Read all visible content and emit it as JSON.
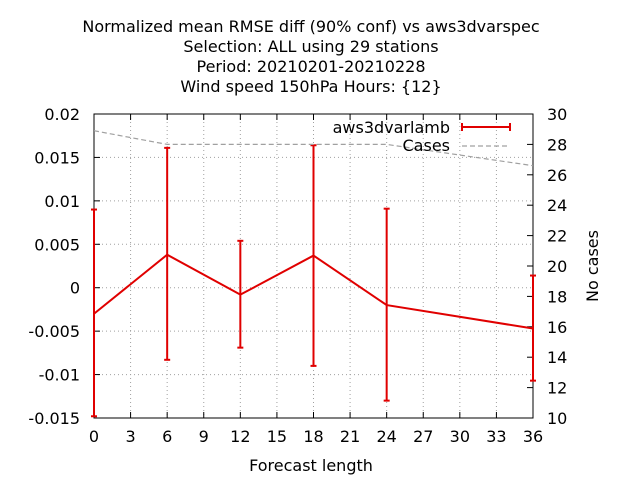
{
  "chart_data": {
    "type": "line",
    "title_lines": [
      "Normalized mean RMSE diff (90% conf) vs aws3dvarspec",
      "Selection: ALL using    29 stations",
      "Period: 20210201-20210228",
      "Wind speed 150hPa   Hours: {12}"
    ],
    "xlabel": "Forecast length",
    "ylabel": "",
    "y2label": "No cases",
    "xlim": [
      0,
      36
    ],
    "ylim": [
      -0.015,
      0.02
    ],
    "y2lim": [
      10,
      30
    ],
    "x_ticks": [
      0,
      3,
      6,
      9,
      12,
      15,
      18,
      21,
      24,
      27,
      30,
      33,
      36
    ],
    "y_ticks": [
      "0.02",
      "0.015",
      "0.01",
      "0.005",
      "0",
      "-0.005",
      "-0.01",
      "-0.015"
    ],
    "y_tick_values": [
      0.02,
      0.015,
      0.01,
      0.005,
      0,
      -0.005,
      -0.01,
      -0.015
    ],
    "y2_ticks": [
      30,
      28,
      26,
      24,
      22,
      20,
      18,
      16,
      14,
      12,
      10
    ],
    "grid": true,
    "legend_position": "top-right",
    "series": [
      {
        "name": "aws3dvarlamb",
        "color": "#e00000",
        "axis": "left",
        "style": "line-errorbars",
        "x": [
          0,
          6,
          12,
          18,
          24,
          36
        ],
        "y": [
          -0.003,
          0.0038,
          -0.0008,
          0.0037,
          -0.002,
          -0.0047
        ],
        "y_low": [
          -0.0148,
          -0.0083,
          -0.0069,
          -0.009,
          -0.013,
          -0.0107
        ],
        "y_high": [
          0.009,
          0.0161,
          0.0054,
          0.0164,
          0.0091,
          0.0014
        ]
      },
      {
        "name": "Cases",
        "color": "#a0a0a0",
        "axis": "right",
        "style": "dashed",
        "x": [
          0,
          6,
          12,
          18,
          24,
          36
        ],
        "y": [
          28.9,
          28.0,
          28.0,
          28.0,
          28.0,
          26.6
        ]
      }
    ]
  }
}
